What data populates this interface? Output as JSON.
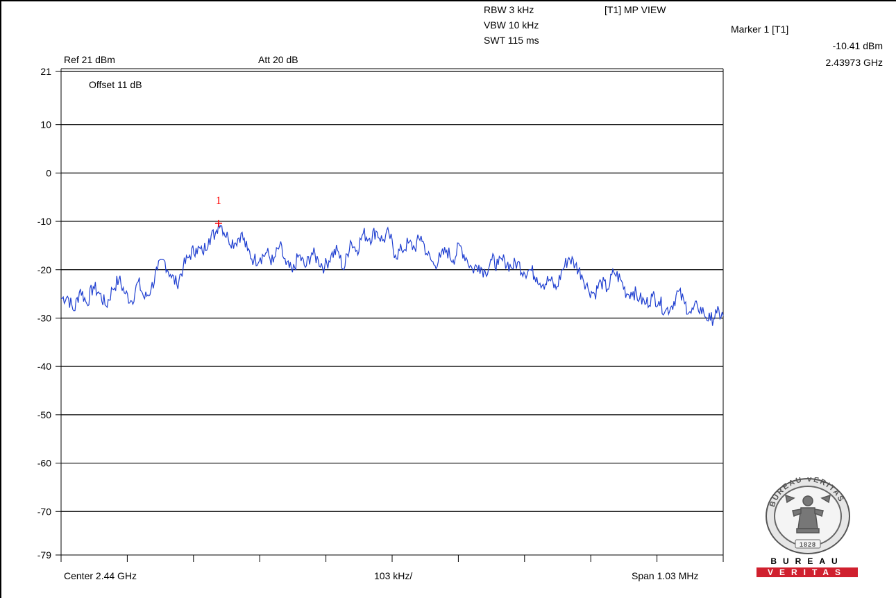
{
  "header": {
    "rbw": "RBW 3 kHz",
    "vbw": "VBW 10 kHz",
    "swt": "SWT 115 ms",
    "trace_mode": "[T1] MP VIEW",
    "ref_level": "Ref 21 dBm",
    "attenuation": "Att  20 dB",
    "offset": "Offset 11 dB"
  },
  "marker": {
    "title": "Marker 1 [T1]",
    "level": "-10.41 dBm",
    "frequency": "2.43973 GHz",
    "label": "1"
  },
  "footer": {
    "center": "Center 2.44 GHz",
    "per_div": "103 kHz/",
    "span": "Span 1.03 MHz"
  },
  "logo": {
    "ring_text": "BUREAU VERITAS",
    "year": "1828",
    "bar_top": "BUREAU",
    "bar_bottom": "VERITAS"
  },
  "colors": {
    "trace": "#1f3fd0",
    "marker": "#ff0000",
    "logo_red": "#d0202e"
  },
  "chart_data": {
    "type": "line",
    "title": "",
    "xlabel": "",
    "ylabel": "",
    "y_tick_labels": [
      "21",
      "10",
      "0",
      "-10",
      "-20",
      "-30",
      "-40",
      "-50",
      "-60",
      "-70",
      "-79"
    ],
    "y_ticks": [
      21,
      10,
      0,
      -10,
      -20,
      -30,
      -40,
      -50,
      -60,
      -70,
      -79
    ],
    "ylim": [
      -79,
      21
    ],
    "xlim": [
      2.439485,
      2.440515
    ],
    "x_unit": "GHz",
    "grid": true,
    "x_divisions": 10,
    "marker_point": {
      "x": 2.43973,
      "y": -10.41
    },
    "series": [
      {
        "x": [
          2.439485,
          2.439495,
          2.439505,
          2.439515,
          2.439525,
          2.439535,
          2.439545,
          2.439555,
          2.439565,
          2.439575,
          2.439585,
          2.439595,
          2.439605,
          2.439615,
          2.439625,
          2.439635,
          2.439645,
          2.439655,
          2.439665,
          2.439675,
          2.439685,
          2.439695,
          2.439705,
          2.439715,
          2.439725,
          2.43973,
          2.439735,
          2.439745,
          2.439755,
          2.439765,
          2.439775,
          2.439785,
          2.439795,
          2.439805,
          2.439815,
          2.439825,
          2.439835,
          2.439845,
          2.439855,
          2.439865,
          2.439875,
          2.439885,
          2.439895,
          2.439905,
          2.439915,
          2.439925,
          2.439935,
          2.439945,
          2.439955,
          2.439965,
          2.439975,
          2.439985,
          2.439995,
          2.440005,
          2.440015,
          2.440025,
          2.440035,
          2.440045,
          2.440055,
          2.440065,
          2.440075,
          2.440085,
          2.440095,
          2.440105,
          2.440115,
          2.440125,
          2.440135,
          2.440145,
          2.440155,
          2.440165,
          2.440175,
          2.440185,
          2.440195,
          2.440205,
          2.440215,
          2.440225,
          2.440235,
          2.440245,
          2.440255,
          2.440265,
          2.440275,
          2.440285,
          2.440295,
          2.440305,
          2.440315,
          2.440325,
          2.440335,
          2.440345,
          2.440355,
          2.440365,
          2.440375,
          2.440385,
          2.440395,
          2.440405,
          2.440415,
          2.440425,
          2.440435,
          2.440445,
          2.440455,
          2.440465,
          2.440475,
          2.440485,
          2.440495,
          2.440505,
          2.440515
        ],
        "y": [
          -26,
          -25.5,
          -28.5,
          -24,
          -27,
          -23.5,
          -25,
          -27.5,
          -24,
          -22,
          -25,
          -26.5,
          -22.5,
          -26,
          -24,
          -20,
          -18,
          -21,
          -23,
          -19.5,
          -17,
          -15.5,
          -16.5,
          -13.5,
          -12.5,
          -10.41,
          -11,
          -13.5,
          -14.5,
          -12.5,
          -16,
          -18,
          -17.5,
          -16.5,
          -18.5,
          -15,
          -19,
          -20.5,
          -17,
          -19.5,
          -16.5,
          -18,
          -19.5,
          -17,
          -16,
          -20,
          -14,
          -16,
          -12.5,
          -13.5,
          -12,
          -14,
          -12.5,
          -17,
          -16,
          -14.5,
          -15.5,
          -13,
          -17,
          -19,
          -17.5,
          -16,
          -18,
          -15,
          -17.5,
          -20,
          -19,
          -20.5,
          -18,
          -19,
          -18,
          -19.5,
          -18.5,
          -20.5,
          -20,
          -21.5,
          -23,
          -22,
          -24,
          -20,
          -17.5,
          -19,
          -21,
          -24,
          -25,
          -22.5,
          -24,
          -20.5,
          -22,
          -25,
          -24.5,
          -26,
          -27,
          -25.5,
          -26.5,
          -28.5,
          -27.5,
          -24.5,
          -27,
          -29,
          -27.5,
          -29,
          -30.5,
          -29,
          -29.5
        ]
      }
    ]
  }
}
